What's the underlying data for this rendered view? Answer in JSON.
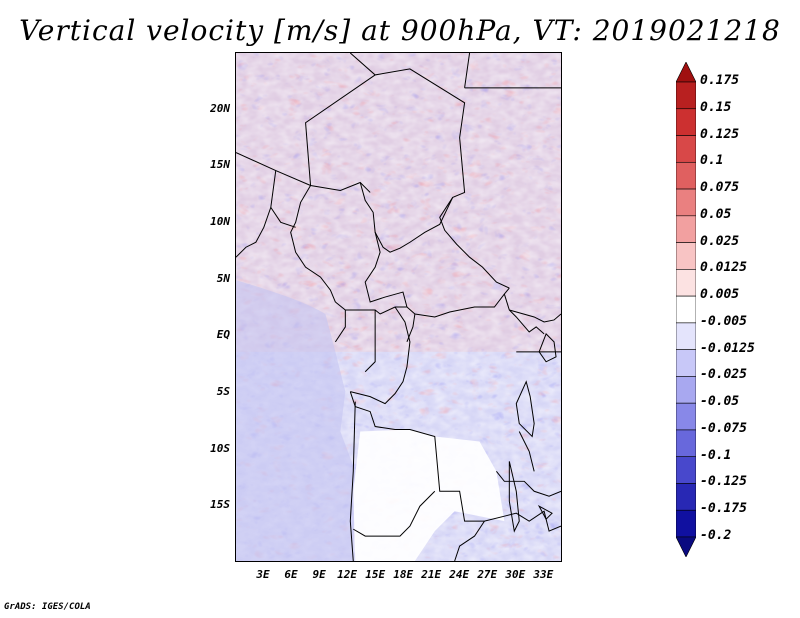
{
  "title": "Vertical velocity [m/s] at 900hPa, VT: 2019021218",
  "credit": "GrADS: IGES/COLA",
  "map": {
    "lat_labels": [
      "20N",
      "15N",
      "10N",
      "5N",
      "EQ",
      "5S",
      "10S",
      "15S"
    ],
    "lat_values": [
      20,
      15,
      10,
      5,
      0,
      -5,
      -10,
      -15
    ],
    "lon_labels": [
      "3E",
      "6E",
      "9E",
      "12E",
      "15E",
      "18E",
      "21E",
      "24E",
      "27E",
      "30E",
      "33E"
    ],
    "lon_values": [
      3,
      6,
      9,
      12,
      15,
      18,
      21,
      24,
      27,
      30,
      33
    ],
    "lat_range": [
      -20,
      25
    ],
    "lon_range": [
      0,
      35
    ]
  },
  "colorbar": {
    "labels": [
      "0.175",
      "0.15",
      "0.125",
      "0.1",
      "0.075",
      "0.05",
      "0.025",
      "0.0125",
      "0.005",
      "-0.005",
      "-0.0125",
      "-0.025",
      "-0.05",
      "-0.075",
      "-0.1",
      "-0.125",
      "-0.175",
      "-0.2"
    ],
    "colors": [
      "#a01010",
      "#b82020",
      "#cc3030",
      "#d84848",
      "#e06060",
      "#ea8080",
      "#f2a0a0",
      "#f8c4c4",
      "#fce2e2",
      "#ffffff",
      "#e4e4fc",
      "#c8c8f8",
      "#a8a8f0",
      "#8888e8",
      "#6868dc",
      "#4848cc",
      "#2828b4",
      "#1010a0",
      "#0a0a80"
    ]
  }
}
